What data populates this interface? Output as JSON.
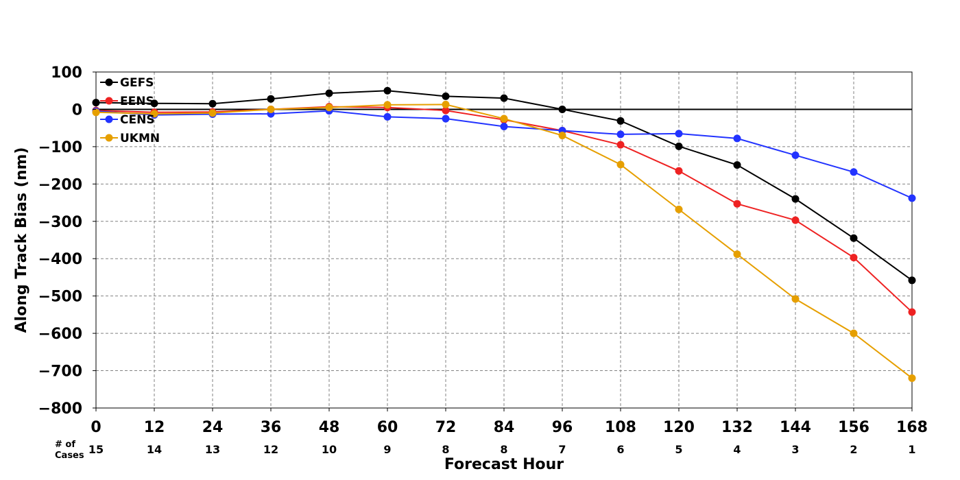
{
  "chart_data": {
    "type": "line",
    "xlabel": "Forecast Hour",
    "ylabel": "Along Track Bias (nm)",
    "x": [
      0,
      12,
      24,
      36,
      48,
      60,
      72,
      84,
      96,
      108,
      120,
      132,
      144,
      156,
      168
    ],
    "xlim": [
      0,
      168
    ],
    "ylim": [
      -800,
      100
    ],
    "yticks": [
      100,
      0,
      -100,
      -200,
      -300,
      -400,
      -500,
      -600,
      -700,
      -800
    ],
    "grid": true,
    "zero_line": true,
    "legend_position": "top-left",
    "cases_label": [
      "# of",
      "Cases"
    ],
    "cases": [
      15,
      14,
      13,
      12,
      10,
      9,
      8,
      8,
      7,
      6,
      5,
      4,
      3,
      2,
      1
    ],
    "series": [
      {
        "name": "GEFS",
        "color": "#000000",
        "values": [
          18,
          16,
          15,
          28,
          43,
          50,
          35,
          30,
          0,
          -31,
          -99,
          -149,
          -240,
          -345,
          -458
        ]
      },
      {
        "name": "EENS",
        "color": "#ee2222",
        "values": [
          -3,
          -8,
          -7,
          0,
          7,
          5,
          -3,
          -28,
          -57,
          -95,
          -165,
          -253,
          -297,
          -397,
          -543
        ]
      },
      {
        "name": "CENS",
        "color": "#2233ff",
        "values": [
          -5,
          -15,
          -13,
          -12,
          -4,
          -20,
          -25,
          -46,
          -57,
          -67,
          -65,
          -78,
          -123,
          -168,
          -238
        ]
      },
      {
        "name": "UKMN",
        "color": "#e69f00",
        "values": [
          -8,
          -12,
          -10,
          0,
          5,
          12,
          13,
          -25,
          -70,
          -148,
          -268,
          -388,
          -508,
          -600,
          -720
        ]
      }
    ]
  }
}
